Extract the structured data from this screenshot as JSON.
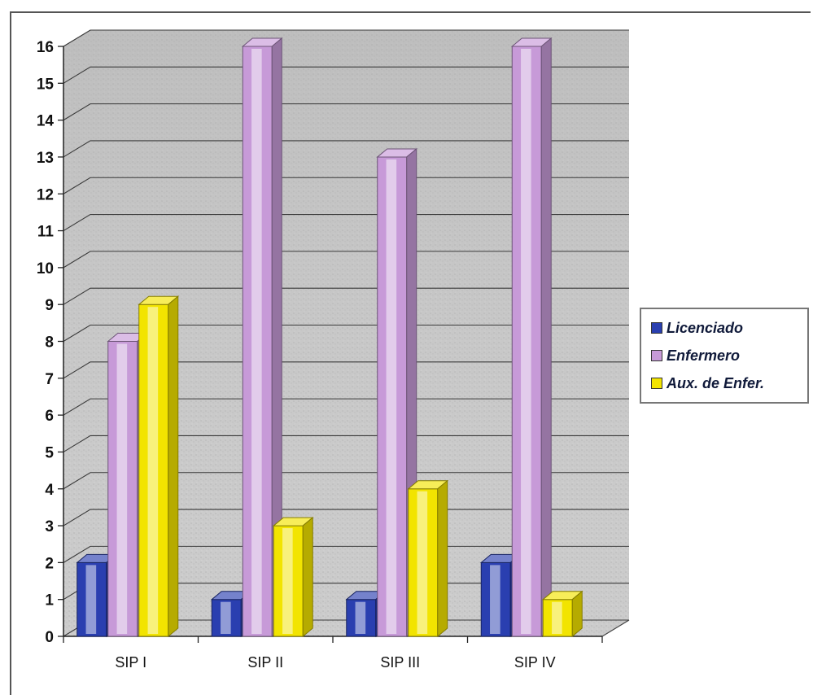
{
  "chart_data": {
    "type": "bar",
    "categories": [
      "SIP I",
      "SIP II",
      "SIP III",
      "SIP IV"
    ],
    "series": [
      {
        "name": "Licenciado",
        "values": [
          2,
          1,
          1,
          2
        ],
        "color": "#2a3fb0"
      },
      {
        "name": "Enfermero",
        "values": [
          8,
          16,
          13,
          16
        ],
        "color": "#c79ad8"
      },
      {
        "name": "Aux. de Enfer.",
        "values": [
          9,
          3,
          4,
          1
        ],
        "color": "#f2e400"
      }
    ],
    "ylim": [
      0,
      16
    ],
    "yticks": [
      0,
      1,
      2,
      3,
      4,
      5,
      6,
      7,
      8,
      9,
      10,
      11,
      12,
      13,
      14,
      15,
      16
    ],
    "grid": true,
    "legend_position": "right",
    "title": "",
    "xlabel": "",
    "ylabel": ""
  }
}
